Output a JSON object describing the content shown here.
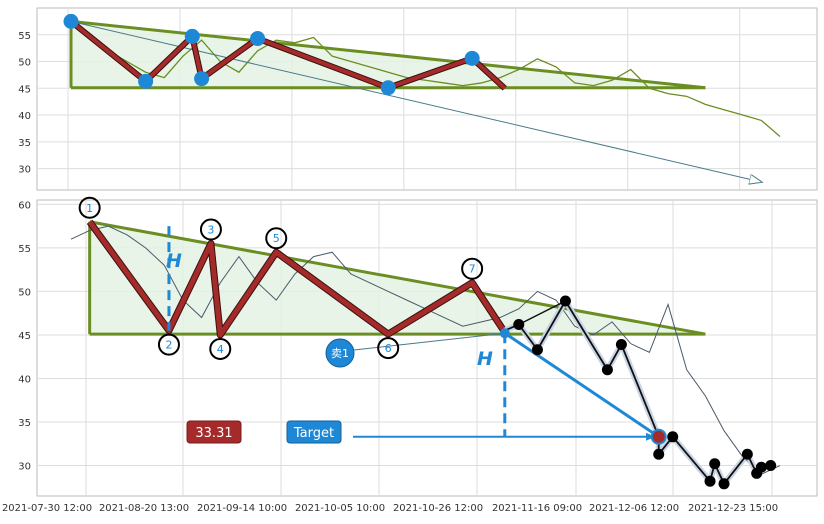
{
  "chart_data": [
    {
      "type": "line",
      "panel": "top",
      "ylim": [
        26,
        60
      ],
      "yticks": [
        30,
        35,
        40,
        45,
        50,
        55
      ],
      "grid": true,
      "series": [
        {
          "role": "price",
          "color": "#6b8e23",
          "x": [
            0,
            4,
            8,
            12,
            16,
            20,
            24,
            28,
            32,
            36,
            40,
            44,
            48,
            52,
            56,
            60,
            64,
            68,
            72,
            76,
            80,
            84,
            88,
            92,
            96,
            100,
            104,
            108,
            112,
            116,
            120,
            124,
            128,
            132,
            136,
            140,
            144,
            148,
            152
          ],
          "y": [
            57.5,
            55,
            52,
            50,
            48,
            47,
            51,
            54,
            50,
            48,
            52,
            54,
            53.5,
            54.5,
            51,
            50,
            49,
            48,
            47,
            46.5,
            46,
            45.5,
            46,
            47,
            48.5,
            50.5,
            49,
            46,
            45.5,
            46.5,
            48.5,
            45,
            44,
            43.5,
            42,
            41,
            40,
            39,
            36
          ]
        }
      ],
      "pattern_points": [
        {
          "x": 0,
          "y": 57.5
        },
        {
          "x": 16,
          "y": 46.3
        },
        {
          "x": 26,
          "y": 54.7
        },
        {
          "x": 28,
          "y": 46.8
        },
        {
          "x": 40,
          "y": 54.3
        },
        {
          "x": 68,
          "y": 45.1
        },
        {
          "x": 86,
          "y": 50.6
        }
      ],
      "colors": {
        "pattern_line": "#a52a2a",
        "trend_line": "#6b8e23",
        "fill": "#e3f2e3",
        "marker": "#1e88d6"
      }
    },
    {
      "type": "line",
      "panel": "bottom",
      "ylim": [
        26.5,
        60.5
      ],
      "yticks": [
        30,
        35,
        40,
        45,
        50,
        55,
        60
      ],
      "grid": true,
      "x_ticks": [
        "2021-07-30 12:00",
        "2021-08-20 13:00",
        "2021-09-14 10:00",
        "2021-10-05 10:00",
        "2021-10-26 12:00",
        "2021-11-16 09:00",
        "2021-12-06 12:00",
        "2021-12-23 15:00"
      ],
      "series": [
        {
          "role": "price",
          "color": "#4a5a6a",
          "x": [
            0,
            4,
            8,
            12,
            16,
            20,
            24,
            28,
            32,
            36,
            40,
            44,
            48,
            52,
            56,
            60,
            64,
            68,
            72,
            76,
            80,
            84,
            88,
            92,
            96,
            100,
            104,
            108,
            112,
            116,
            120,
            124,
            128,
            132,
            136,
            140,
            144,
            148,
            152
          ],
          "y": [
            56,
            57,
            57.5,
            56.5,
            55,
            53,
            49,
            47,
            51,
            54,
            51,
            49,
            52,
            54,
            54.5,
            52,
            51,
            50,
            49,
            48,
            47,
            46,
            46.5,
            47,
            48,
            50,
            49,
            46,
            45,
            46.5,
            44,
            43,
            48.5,
            41,
            38,
            34,
            31,
            29,
            30
          ]
        }
      ],
      "pattern_points": [
        {
          "label": "1",
          "x": 4,
          "y": 58
        },
        {
          "label": "2",
          "x": 21,
          "y": 45.5
        },
        {
          "label": "3",
          "x": 30,
          "y": 55.5
        },
        {
          "label": "4",
          "x": 32,
          "y": 45
        },
        {
          "label": "5",
          "x": 44,
          "y": 54.5
        },
        {
          "label": "6",
          "x": 68,
          "y": 45.1
        },
        {
          "label": "7",
          "x": 86,
          "y": 51
        }
      ],
      "forecast_points": [
        {
          "x": 93,
          "y": 45.5
        },
        {
          "x": 96,
          "y": 46.2
        },
        {
          "x": 100,
          "y": 43.3
        },
        {
          "x": 106,
          "y": 48.9
        },
        {
          "x": 115,
          "y": 41
        },
        {
          "x": 118,
          "y": 43.9
        },
        {
          "x": 126,
          "y": 33.3
        },
        {
          "x": 126,
          "y": 31.3
        },
        {
          "x": 129,
          "y": 33.3
        },
        {
          "x": 137,
          "y": 28.2
        },
        {
          "x": 138,
          "y": 30.2
        },
        {
          "x": 140,
          "y": 27.9
        },
        {
          "x": 145,
          "y": 31.3
        },
        {
          "x": 147,
          "y": 29.1
        },
        {
          "x": 148,
          "y": 29.8
        },
        {
          "x": 150,
          "y": 30
        }
      ],
      "annotations": {
        "height_label": "H",
        "sell_label": "卖1",
        "target_label": "Target",
        "target_value": "33.31",
        "target_y": 33.31,
        "breakout": {
          "x": 93,
          "y": 45.2
        }
      },
      "colors": {
        "pattern_line": "#a52a2a",
        "trend_line": "#6b8e23",
        "fill": "#e3f2e3",
        "accent": "#1e88d6",
        "target_box": "#a52a2a",
        "forecast": "#000000"
      }
    }
  ]
}
